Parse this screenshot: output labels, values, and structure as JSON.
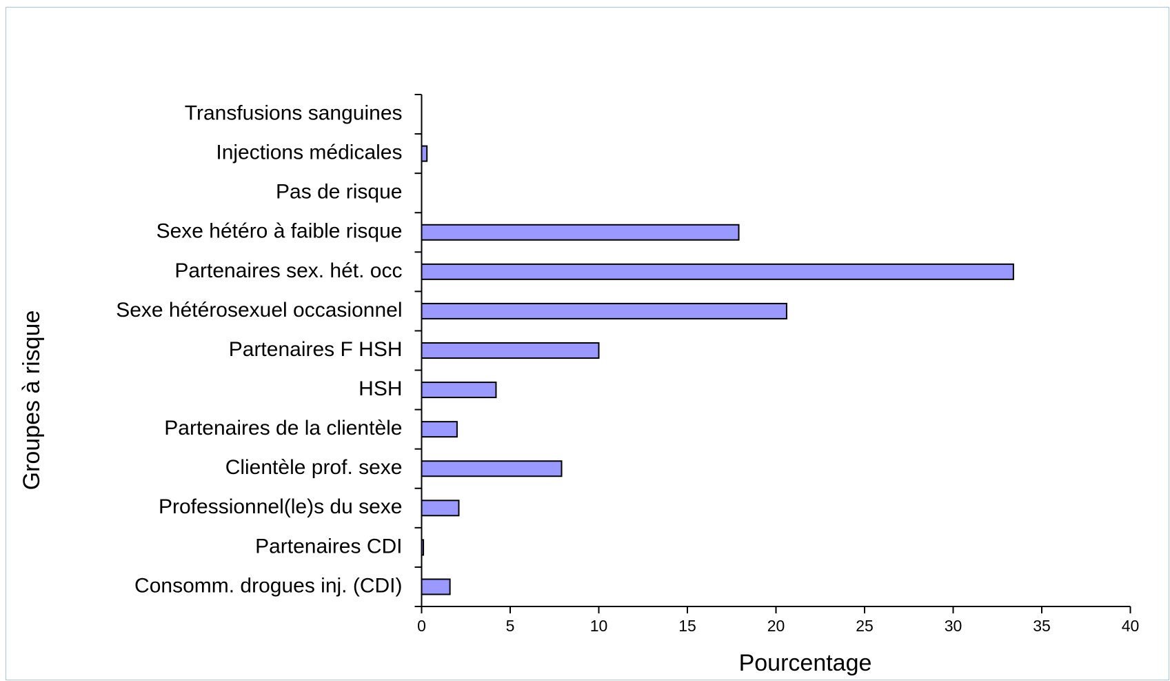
{
  "chart_data": {
    "type": "bar",
    "orientation": "horizontal",
    "x_label": "Pourcentage",
    "y_label": "Groupes à risque",
    "categories": [
      "Transfusions sanguines",
      "Injections médicales",
      "Pas de risque",
      "Sexe hétéro à faible risque",
      "Partenaires sex. hét. occ",
      "Sexe hétérosexuel occasionnel",
      "Partenaires F HSH",
      "HSH",
      "Partenaires de la clientèle",
      "Clientèle prof. sexe",
      "Professionnel(le)s du sexe",
      "Partenaires CDI",
      "Consomm. drogues inj. (CDI)"
    ],
    "values": [
      0,
      0.3,
      0,
      17.9,
      33.4,
      20.6,
      10.0,
      4.2,
      2.0,
      7.9,
      2.1,
      0.1,
      1.6
    ],
    "color": "#9999ff",
    "xlim": [
      0,
      40
    ],
    "xticks": [
      0,
      5,
      10,
      15,
      20,
      25,
      30,
      35,
      40
    ],
    "grid": false
  }
}
